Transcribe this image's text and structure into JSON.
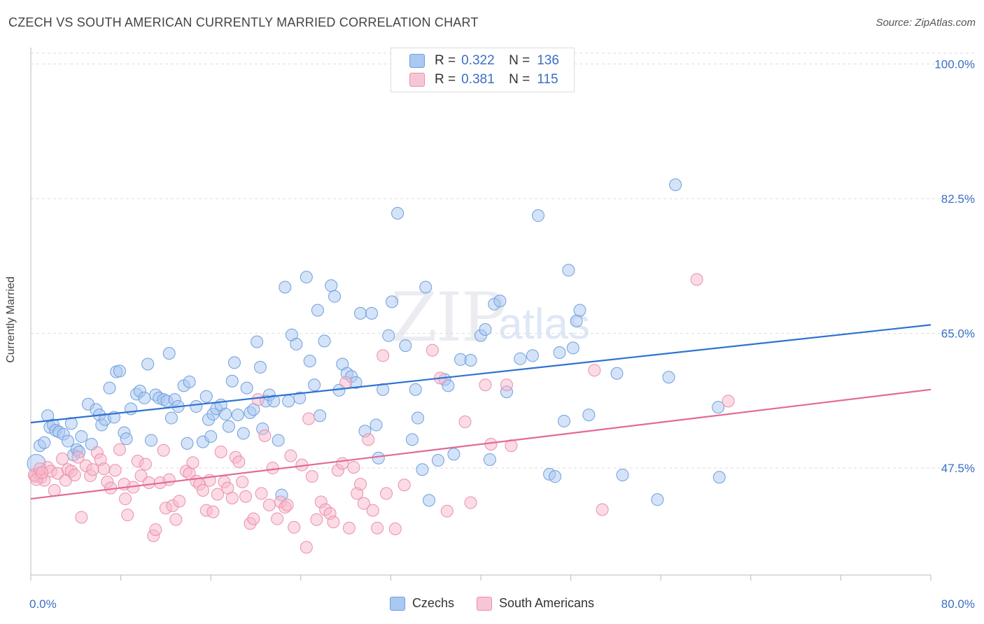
{
  "header": {
    "title": "CZECH VS SOUTH AMERICAN CURRENTLY MARRIED CORRELATION CHART",
    "source": "Source: ZipAtlas.com"
  },
  "watermark": {
    "zip": "ZIP",
    "atlas": "atlas"
  },
  "legend": {
    "rows": [
      {
        "r_label": "R =",
        "r_value": "0.322",
        "n_label": "N =",
        "n_value": "136"
      },
      {
        "r_label": "R =",
        "r_value": "0.381",
        "n_label": "N =",
        "n_value": "115"
      }
    ]
  },
  "bottom_legend": {
    "czech": "Czechs",
    "south": "South Americans"
  },
  "colors": {
    "blue_fill": "#a9c8f2",
    "blue_stroke": "#6f9fdd",
    "blue_line": "#2f72d2",
    "pink_fill": "#f7b8ca",
    "pink_stroke": "#ea8fad",
    "pink_line": "#e26a94",
    "axis_text": "#3a6fc4",
    "grid": "#dddddd"
  },
  "chart_data": {
    "type": "scatter",
    "xlabel": "",
    "ylabel": "Currently Married",
    "xlim": [
      0,
      80
    ],
    "ylim": [
      33.6,
      101.4
    ],
    "x_tick_labels": [
      {
        "value": 0,
        "label": "0.0%"
      },
      {
        "value": 80,
        "label": "80.0%"
      }
    ],
    "y_tick_labels": [
      {
        "value": 47.5,
        "label": "47.5%"
      },
      {
        "value": 65.0,
        "label": "65.0%"
      },
      {
        "value": 82.5,
        "label": "82.5%"
      },
      {
        "value": 100.0,
        "label": "100.0%"
      }
    ],
    "grid": true,
    "series": [
      {
        "name": "Czechs",
        "trend": [
          [
            0,
            53.4
          ],
          [
            80,
            66.1
          ]
        ],
        "points": [
          [
            0.5,
            48.1
          ],
          [
            0.8,
            50.4
          ],
          [
            1.2,
            50.8
          ],
          [
            1.5,
            54.3
          ],
          [
            1.7,
            52.8
          ],
          [
            2.0,
            53.1
          ],
          [
            2.2,
            52.4
          ],
          [
            2.5,
            52.2
          ],
          [
            2.9,
            51.9
          ],
          [
            3.3,
            51.0
          ],
          [
            3.6,
            53.3
          ],
          [
            3.8,
            49.2
          ],
          [
            4.1,
            49.9
          ],
          [
            4.3,
            49.6
          ],
          [
            4.5,
            51.6
          ],
          [
            5.1,
            55.8
          ],
          [
            5.4,
            50.6
          ],
          [
            5.8,
            55.1
          ],
          [
            6.1,
            54.4
          ],
          [
            6.3,
            53.1
          ],
          [
            6.6,
            53.8
          ],
          [
            7.0,
            57.9
          ],
          [
            7.4,
            54.1
          ],
          [
            7.6,
            60.0
          ],
          [
            7.9,
            60.1
          ],
          [
            8.3,
            52.1
          ],
          [
            8.5,
            51.3
          ],
          [
            8.9,
            55.2
          ],
          [
            9.4,
            57.1
          ],
          [
            9.7,
            57.5
          ],
          [
            10.1,
            56.6
          ],
          [
            10.4,
            61.0
          ],
          [
            10.7,
            51.1
          ],
          [
            11.1,
            57.0
          ],
          [
            11.4,
            56.6
          ],
          [
            11.8,
            56.4
          ],
          [
            12.1,
            56.2
          ],
          [
            12.3,
            62.4
          ],
          [
            12.5,
            54.0
          ],
          [
            12.8,
            56.4
          ],
          [
            13.1,
            55.5
          ],
          [
            13.6,
            58.2
          ],
          [
            13.9,
            50.7
          ],
          [
            14.1,
            58.7
          ],
          [
            14.7,
            55.5
          ],
          [
            15.3,
            50.9
          ],
          [
            15.6,
            56.8
          ],
          [
            15.8,
            53.8
          ],
          [
            16.0,
            51.6
          ],
          [
            16.2,
            54.5
          ],
          [
            16.5,
            55.2
          ],
          [
            16.9,
            55.7
          ],
          [
            17.3,
            54.5
          ],
          [
            17.6,
            52.9
          ],
          [
            17.9,
            58.8
          ],
          [
            18.1,
            61.2
          ],
          [
            18.4,
            54.4
          ],
          [
            18.9,
            52.0
          ],
          [
            19.2,
            57.9
          ],
          [
            19.5,
            54.7
          ],
          [
            19.8,
            55.1
          ],
          [
            20.1,
            63.9
          ],
          [
            20.4,
            60.6
          ],
          [
            20.6,
            52.6
          ],
          [
            20.9,
            56.2
          ],
          [
            21.2,
            57.0
          ],
          [
            21.6,
            56.2
          ],
          [
            22.0,
            51.1
          ],
          [
            22.6,
            71.0
          ],
          [
            22.9,
            56.2
          ],
          [
            22.3,
            44.0
          ],
          [
            23.2,
            64.8
          ],
          [
            23.6,
            63.6
          ],
          [
            23.9,
            56.6
          ],
          [
            24.5,
            72.3
          ],
          [
            24.8,
            61.4
          ],
          [
            25.2,
            58.3
          ],
          [
            25.5,
            68.0
          ],
          [
            25.7,
            54.3
          ],
          [
            26.1,
            64.0
          ],
          [
            26.7,
            71.2
          ],
          [
            27.0,
            69.8
          ],
          [
            27.4,
            57.6
          ],
          [
            27.7,
            61.0
          ],
          [
            28.1,
            59.8
          ],
          [
            28.5,
            59.4
          ],
          [
            28.9,
            58.6
          ],
          [
            29.3,
            67.6
          ],
          [
            29.7,
            52.3
          ],
          [
            30.3,
            67.6
          ],
          [
            30.7,
            53.1
          ],
          [
            30.9,
            48.8
          ],
          [
            31.3,
            57.7
          ],
          [
            31.8,
            64.7
          ],
          [
            32.1,
            69.1
          ],
          [
            32.6,
            80.6
          ],
          [
            33.3,
            63.4
          ],
          [
            33.9,
            51.2
          ],
          [
            34.2,
            57.7
          ],
          [
            34.4,
            54.0
          ],
          [
            34.8,
            47.3
          ],
          [
            35.1,
            71.0
          ],
          [
            35.4,
            43.3
          ],
          [
            36.2,
            48.5
          ],
          [
            36.8,
            59.0
          ],
          [
            37.1,
            58.2
          ],
          [
            37.6,
            49.3
          ],
          [
            38.2,
            61.6
          ],
          [
            39.1,
            61.5
          ],
          [
            40.0,
            64.7
          ],
          [
            40.4,
            65.5
          ],
          [
            40.8,
            48.6
          ],
          [
            41.2,
            68.8
          ],
          [
            41.7,
            69.2
          ],
          [
            42.3,
            57.4
          ],
          [
            43.5,
            61.7
          ],
          [
            44.6,
            62.1
          ],
          [
            45.1,
            80.3
          ],
          [
            46.1,
            46.7
          ],
          [
            46.6,
            46.4
          ],
          [
            47.0,
            62.5
          ],
          [
            47.4,
            53.6
          ],
          [
            47.8,
            73.2
          ],
          [
            48.2,
            63.1
          ],
          [
            48.5,
            66.6
          ],
          [
            48.8,
            68.0
          ],
          [
            49.6,
            54.4
          ],
          [
            52.1,
            59.8
          ],
          [
            52.6,
            46.6
          ],
          [
            55.7,
            43.4
          ],
          [
            56.7,
            59.3
          ],
          [
            57.3,
            84.3
          ],
          [
            61.1,
            55.4
          ],
          [
            61.2,
            46.3
          ]
        ]
      },
      {
        "name": "South Americans",
        "trend": [
          [
            0,
            43.5
          ],
          [
            80,
            57.7
          ]
        ],
        "points": [
          [
            0.4,
            46.4
          ],
          [
            0.7,
            46.8
          ],
          [
            0.9,
            46.3
          ],
          [
            1.2,
            45.9
          ],
          [
            1.5,
            47.6
          ],
          [
            1.8,
            47.1
          ],
          [
            2.1,
            44.6
          ],
          [
            2.4,
            46.8
          ],
          [
            2.8,
            48.7
          ],
          [
            3.1,
            45.9
          ],
          [
            3.3,
            47.3
          ],
          [
            3.6,
            47.1
          ],
          [
            3.9,
            46.6
          ],
          [
            4.2,
            48.9
          ],
          [
            4.5,
            41.1
          ],
          [
            4.9,
            47.8
          ],
          [
            5.3,
            46.5
          ],
          [
            5.5,
            47.3
          ],
          [
            5.9,
            49.5
          ],
          [
            6.2,
            48.6
          ],
          [
            6.5,
            47.4
          ],
          [
            6.8,
            45.7
          ],
          [
            7.1,
            44.9
          ],
          [
            7.5,
            47.2
          ],
          [
            7.9,
            49.9
          ],
          [
            8.3,
            45.4
          ],
          [
            8.4,
            43.5
          ],
          [
            8.6,
            41.4
          ],
          [
            9.1,
            45.0
          ],
          [
            9.5,
            48.4
          ],
          [
            9.8,
            46.5
          ],
          [
            10.2,
            48.0
          ],
          [
            10.5,
            45.6
          ],
          [
            10.9,
            38.7
          ],
          [
            11.1,
            39.5
          ],
          [
            11.5,
            45.6
          ],
          [
            11.8,
            49.8
          ],
          [
            12.0,
            42.3
          ],
          [
            12.3,
            46.0
          ],
          [
            12.6,
            42.6
          ],
          [
            12.9,
            40.8
          ],
          [
            13.2,
            43.2
          ],
          [
            13.8,
            47.1
          ],
          [
            14.1,
            46.8
          ],
          [
            14.4,
            48.2
          ],
          [
            14.7,
            45.8
          ],
          [
            15.0,
            45.4
          ],
          [
            15.3,
            44.6
          ],
          [
            15.6,
            42.0
          ],
          [
            15.9,
            45.9
          ],
          [
            16.2,
            41.8
          ],
          [
            16.6,
            44.1
          ],
          [
            16.9,
            49.6
          ],
          [
            17.2,
            45.7
          ],
          [
            17.5,
            44.9
          ],
          [
            17.9,
            43.6
          ],
          [
            18.2,
            48.9
          ],
          [
            18.5,
            48.3
          ],
          [
            18.8,
            45.7
          ],
          [
            19.1,
            43.8
          ],
          [
            19.5,
            40.3
          ],
          [
            19.8,
            40.9
          ],
          [
            20.2,
            56.4
          ],
          [
            20.5,
            44.2
          ],
          [
            20.8,
            51.7
          ],
          [
            21.2,
            42.7
          ],
          [
            21.5,
            47.5
          ],
          [
            21.9,
            40.9
          ],
          [
            22.2,
            43.1
          ],
          [
            22.6,
            42.4
          ],
          [
            22.8,
            42.7
          ],
          [
            23.1,
            49.1
          ],
          [
            23.4,
            39.8
          ],
          [
            24.1,
            47.9
          ],
          [
            24.5,
            37.2
          ],
          [
            24.7,
            53.9
          ],
          [
            25.0,
            46.4
          ],
          [
            25.4,
            40.8
          ],
          [
            25.8,
            43.1
          ],
          [
            26.2,
            42.1
          ],
          [
            26.6,
            41.6
          ],
          [
            26.9,
            40.5
          ],
          [
            27.3,
            47.2
          ],
          [
            27.7,
            48.1
          ],
          [
            28.0,
            58.6
          ],
          [
            28.3,
            39.7
          ],
          [
            28.7,
            47.6
          ],
          [
            29.0,
            44.2
          ],
          [
            29.3,
            45.4
          ],
          [
            29.6,
            42.9
          ],
          [
            30.0,
            51.2
          ],
          [
            30.4,
            42.0
          ],
          [
            30.8,
            39.7
          ],
          [
            31.3,
            62.1
          ],
          [
            31.6,
            44.2
          ],
          [
            32.4,
            39.6
          ],
          [
            33.2,
            45.3
          ],
          [
            35.7,
            62.8
          ],
          [
            36.4,
            59.2
          ],
          [
            37.0,
            41.9
          ],
          [
            38.6,
            53.5
          ],
          [
            39.1,
            43.0
          ],
          [
            40.4,
            58.3
          ],
          [
            40.9,
            50.6
          ],
          [
            42.3,
            58.3
          ],
          [
            42.7,
            50.4
          ],
          [
            50.1,
            60.2
          ],
          [
            50.8,
            42.1
          ],
          [
            59.2,
            72.0
          ],
          [
            62.0,
            56.2
          ],
          [
            0.3,
            46.6
          ],
          [
            0.5,
            46.0
          ],
          [
            0.8,
            47.4
          ],
          [
            1.0,
            46.9
          ]
        ]
      }
    ]
  }
}
